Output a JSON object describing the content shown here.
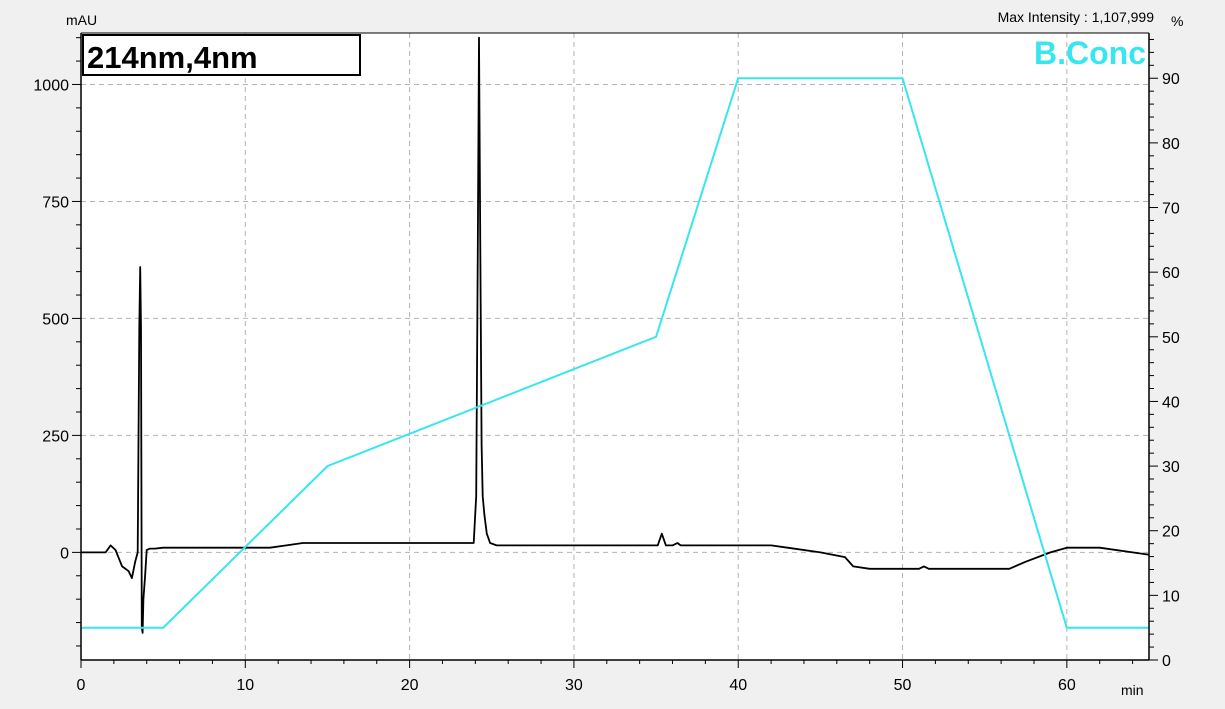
{
  "chart_data": {
    "type": "line",
    "header": {
      "y_unit_left": "mAU",
      "y_unit_right": "%",
      "x_unit": "min",
      "max_intensity": "Max Intensity : 1,107,999"
    },
    "wavelength_label": "214nm,4nm",
    "gradient_label": "B.Conc",
    "x_axis": {
      "range": [
        0,
        65
      ],
      "ticks": [
        0,
        10,
        20,
        30,
        40,
        50,
        60
      ]
    },
    "y_axis_left": {
      "range": [
        -230,
        1110
      ],
      "ticks": [
        0,
        250,
        500,
        750,
        1000
      ],
      "tick_labels": [
        "0",
        "250",
        "500",
        "750",
        "1000"
      ]
    },
    "y_axis_right": {
      "range": [
        0,
        97
      ],
      "ticks": [
        0,
        10,
        20,
        30,
        40,
        50,
        60,
        70,
        80,
        90
      ],
      "tick_labels": [
        "0",
        "10",
        "20",
        "30",
        "40",
        "50",
        "60",
        "70",
        "80",
        "90"
      ]
    },
    "grid": true,
    "colors": {
      "chromatogram": "#000000",
      "gradient": "#37e6ee",
      "grid": "#b4b4b4",
      "plot_bg": "#ffffff",
      "page_bg": "#f0f0f0"
    },
    "series": [
      {
        "role": "chromatogram",
        "axis": "left",
        "x": [
          0,
          1.5,
          1.8,
          2.1,
          2.5,
          2.9,
          3.1,
          3.3,
          3.45,
          3.55,
          3.6,
          3.65,
          3.7,
          3.75,
          3.8,
          3.9,
          4.0,
          4.2,
          4.5,
          5.0,
          6.0,
          10,
          11.5,
          12.5,
          13.5,
          15,
          20,
          23.5,
          23.9,
          24.05,
          24.15,
          24.22,
          24.3,
          24.38,
          24.45,
          24.55,
          24.7,
          24.9,
          25.3,
          26,
          30,
          34.5,
          35.1,
          35.35,
          35.6,
          36,
          36.3,
          36.5,
          36.7,
          37,
          40,
          42,
          43,
          45,
          46.5,
          47,
          48,
          50,
          51,
          51.3,
          51.6,
          52,
          55,
          56.5,
          57.5,
          59,
          60,
          62,
          64,
          65
        ],
        "y": [
          0,
          0,
          15,
          5,
          -30,
          -40,
          -55,
          -20,
          0,
          480,
          610,
          480,
          -160,
          -172,
          -100,
          -50,
          5,
          8,
          8,
          10,
          10,
          10,
          10,
          15,
          20,
          20,
          20,
          20,
          20,
          120,
          650,
          1100,
          650,
          230,
          120,
          80,
          40,
          20,
          15,
          15,
          15,
          15,
          15,
          40,
          15,
          15,
          20,
          15,
          15,
          15,
          15,
          15,
          10,
          0,
          -10,
          -30,
          -35,
          -35,
          -35,
          -30,
          -35,
          -35,
          -35,
          -35,
          -20,
          0,
          10,
          10,
          0,
          -5
        ]
      },
      {
        "role": "gradient",
        "name": "B.Conc",
        "axis": "right",
        "x": [
          0,
          5,
          15,
          35,
          40,
          50,
          60,
          65
        ],
        "y": [
          5,
          5,
          30,
          50,
          90,
          90,
          5,
          5
        ]
      }
    ]
  }
}
